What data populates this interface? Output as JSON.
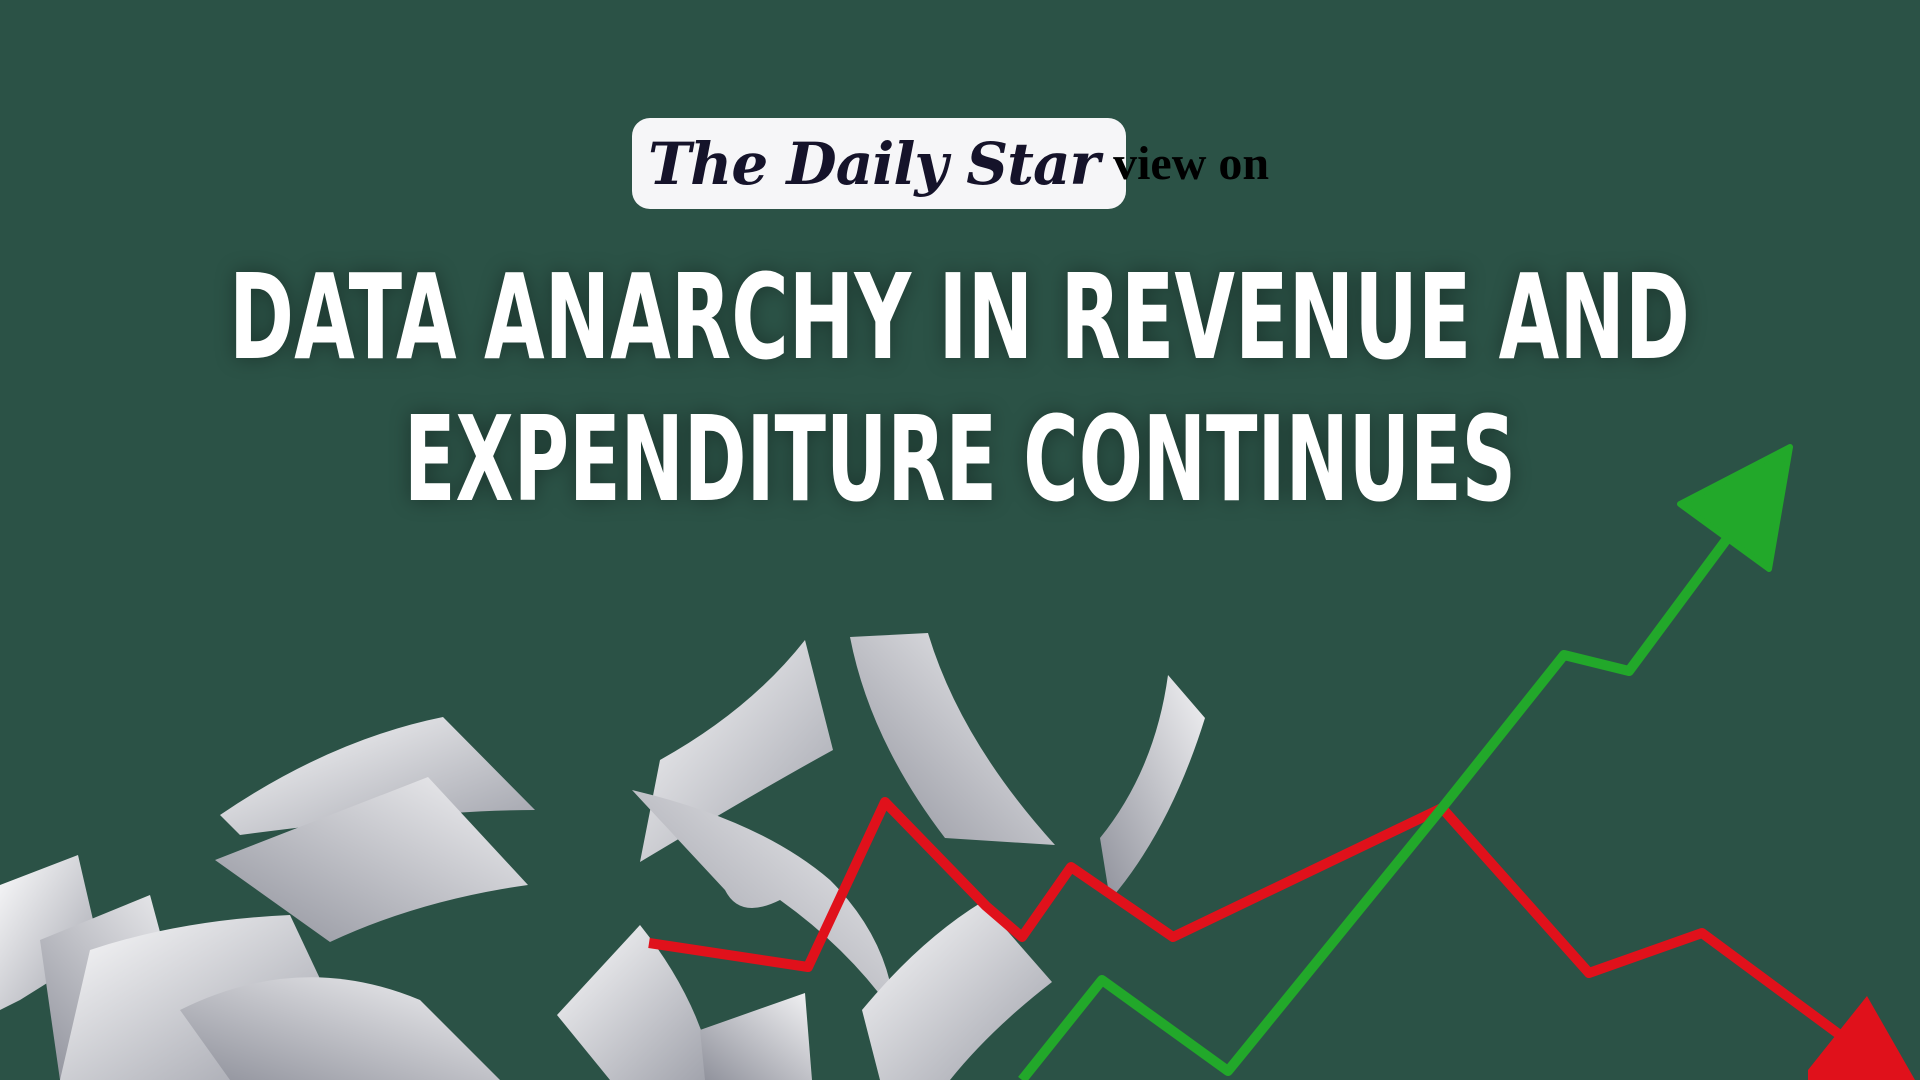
{
  "logo": {
    "brand": "The Daily Star",
    "suffix": "view on"
  },
  "headline": {
    "line1": "DATA ANARCHY IN REVENUE AND",
    "line2": "EXPENDITURE CONTINUES"
  },
  "colors": {
    "background": "#2b5246",
    "up_arrow": "#22a82a",
    "down_arrow": "#e0111b",
    "paper": "#e4e5ea"
  },
  "illustration": {
    "icons": [
      "flying-papers",
      "rising-green-arrow",
      "falling-red-arrow"
    ]
  }
}
